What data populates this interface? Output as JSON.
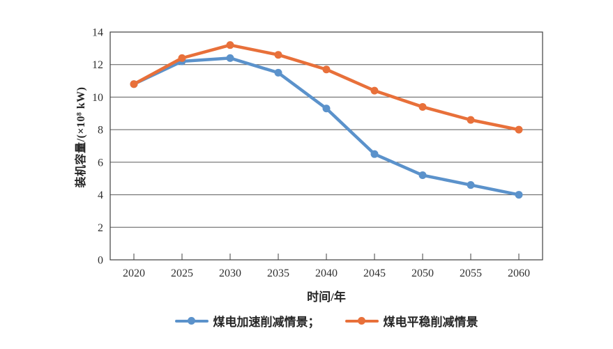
{
  "chart_data": {
    "type": "line",
    "categories": [
      "2020",
      "2025",
      "2030",
      "2035",
      "2040",
      "2045",
      "2050",
      "2055",
      "2060"
    ],
    "series": [
      {
        "name": "煤电加速削减情景",
        "legend_label": "煤电加速削减情景；",
        "color": "#5B92CB",
        "values": [
          10.8,
          12.2,
          12.4,
          11.5,
          9.3,
          6.5,
          5.2,
          4.6,
          4.0
        ]
      },
      {
        "name": "煤电平稳削减情景",
        "legend_label": "煤电平稳削减情景",
        "color": "#E8703A",
        "values": [
          10.8,
          12.4,
          13.2,
          12.6,
          11.7,
          10.4,
          9.4,
          8.6,
          8.0
        ]
      }
    ],
    "xlabel": "时间/年",
    "ylabel": "装机容量/(×10⁸ kW)",
    "ylim": [
      0,
      14
    ],
    "ytick_step": 2,
    "grid": "horizontal gridlines at every y tick",
    "legend_position": "bottom center",
    "grid_color": "#595959",
    "axis_color": "#404040"
  }
}
